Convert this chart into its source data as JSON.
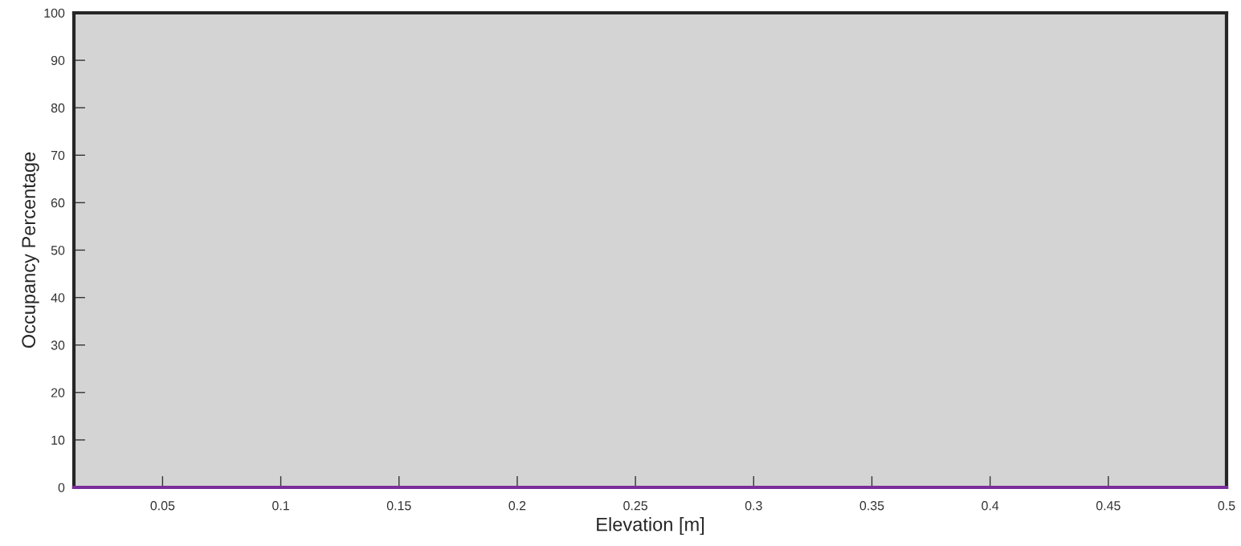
{
  "chart_data": {
    "type": "line",
    "xlabel": "Elevation [m]",
    "ylabel": "Occupancy Percentage",
    "x": [
      0.0125,
      0.5
    ],
    "series": [
      {
        "color": "#7b2d9a",
        "values": [
          0,
          0
        ]
      }
    ],
    "xlim": [
      0.0125,
      0.5
    ],
    "xticks": [
      0.05,
      0.1,
      0.15,
      0.2,
      0.25,
      0.3,
      0.35,
      0.4,
      0.45,
      0.5
    ],
    "ylim": [
      0,
      100
    ],
    "yticks": [
      0,
      10,
      20,
      30,
      40,
      50,
      60,
      70,
      80,
      90,
      100
    ],
    "grid": false,
    "marker": "none",
    "line_style": "solid"
  }
}
